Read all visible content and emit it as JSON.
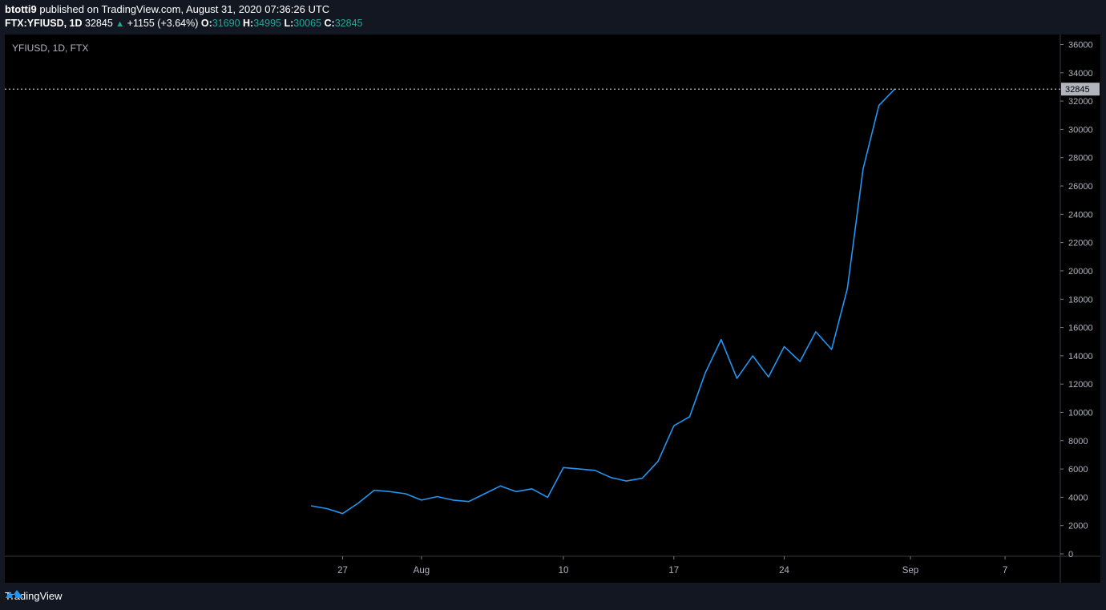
{
  "header": {
    "author": "btotti9",
    "published_text": "published on TradingView.com, August 31, 2020 07:36:26 UTC",
    "symbol": "FTX:YFIUSD, 1D",
    "last": "32845",
    "change": "+1155 (+3.64%)",
    "o_label": "O:",
    "o_value": "31690",
    "h_label": "H:",
    "h_value": "34995",
    "l_label": "L:",
    "l_value": "30065",
    "c_label": "C:",
    "c_value": "32845"
  },
  "footer": {
    "brand": "TradingView"
  },
  "colors": {
    "line": "#2196f3",
    "up": "#26a69a",
    "background": "#000000",
    "outer": "#131722"
  },
  "chart_data": {
    "type": "line",
    "title": "YFIUSD, 1D, FTX",
    "last_price_label": "32845",
    "y_ticks": [
      0,
      2000,
      4000,
      6000,
      8000,
      10000,
      12000,
      14000,
      16000,
      18000,
      20000,
      22000,
      24000,
      26000,
      28000,
      30000,
      32000,
      34000,
      36000
    ],
    "x_ticks": [
      {
        "label": "27",
        "date": "2020-07-27"
      },
      {
        "label": "Aug",
        "date": "2020-08-01"
      },
      {
        "label": "10",
        "date": "2020-08-10"
      },
      {
        "label": "17",
        "date": "2020-08-17"
      },
      {
        "label": "24",
        "date": "2020-08-24"
      },
      {
        "label": "Sep",
        "date": "2020-09-01"
      },
      {
        "label": "7",
        "date": "2020-09-07"
      }
    ],
    "series": [
      {
        "values": [
          {
            "x": "2020-07-25",
            "y": 3400
          },
          {
            "x": "2020-07-26",
            "y": 3200
          },
          {
            "x": "2020-07-27",
            "y": 2850
          },
          {
            "x": "2020-07-28",
            "y": 3600
          },
          {
            "x": "2020-07-29",
            "y": 4500
          },
          {
            "x": "2020-07-30",
            "y": 4400
          },
          {
            "x": "2020-07-31",
            "y": 4250
          },
          {
            "x": "2020-08-01",
            "y": 3800
          },
          {
            "x": "2020-08-02",
            "y": 4050
          },
          {
            "x": "2020-08-03",
            "y": 3800
          },
          {
            "x": "2020-08-04",
            "y": 3700
          },
          {
            "x": "2020-08-05",
            "y": 4250
          },
          {
            "x": "2020-08-06",
            "y": 4800
          },
          {
            "x": "2020-08-07",
            "y": 4400
          },
          {
            "x": "2020-08-08",
            "y": 4600
          },
          {
            "x": "2020-08-09",
            "y": 4000
          },
          {
            "x": "2020-08-10",
            "y": 6100
          },
          {
            "x": "2020-08-11",
            "y": 6000
          },
          {
            "x": "2020-08-12",
            "y": 5900
          },
          {
            "x": "2020-08-13",
            "y": 5400
          },
          {
            "x": "2020-08-14",
            "y": 5150
          },
          {
            "x": "2020-08-15",
            "y": 5350
          },
          {
            "x": "2020-08-16",
            "y": 6550
          },
          {
            "x": "2020-08-17",
            "y": 9050
          },
          {
            "x": "2020-08-18",
            "y": 9700
          },
          {
            "x": "2020-08-19",
            "y": 12800
          },
          {
            "x": "2020-08-20",
            "y": 15150
          },
          {
            "x": "2020-08-21",
            "y": 12400
          },
          {
            "x": "2020-08-22",
            "y": 14000
          },
          {
            "x": "2020-08-23",
            "y": 12500
          },
          {
            "x": "2020-08-24",
            "y": 14650
          },
          {
            "x": "2020-08-25",
            "y": 13600
          },
          {
            "x": "2020-08-26",
            "y": 15700
          },
          {
            "x": "2020-08-27",
            "y": 14450
          },
          {
            "x": "2020-08-28",
            "y": 18750
          },
          {
            "x": "2020-08-29",
            "y": 27200
          },
          {
            "x": "2020-08-30",
            "y": 31690
          },
          {
            "x": "2020-08-31",
            "y": 32845
          }
        ]
      }
    ]
  }
}
